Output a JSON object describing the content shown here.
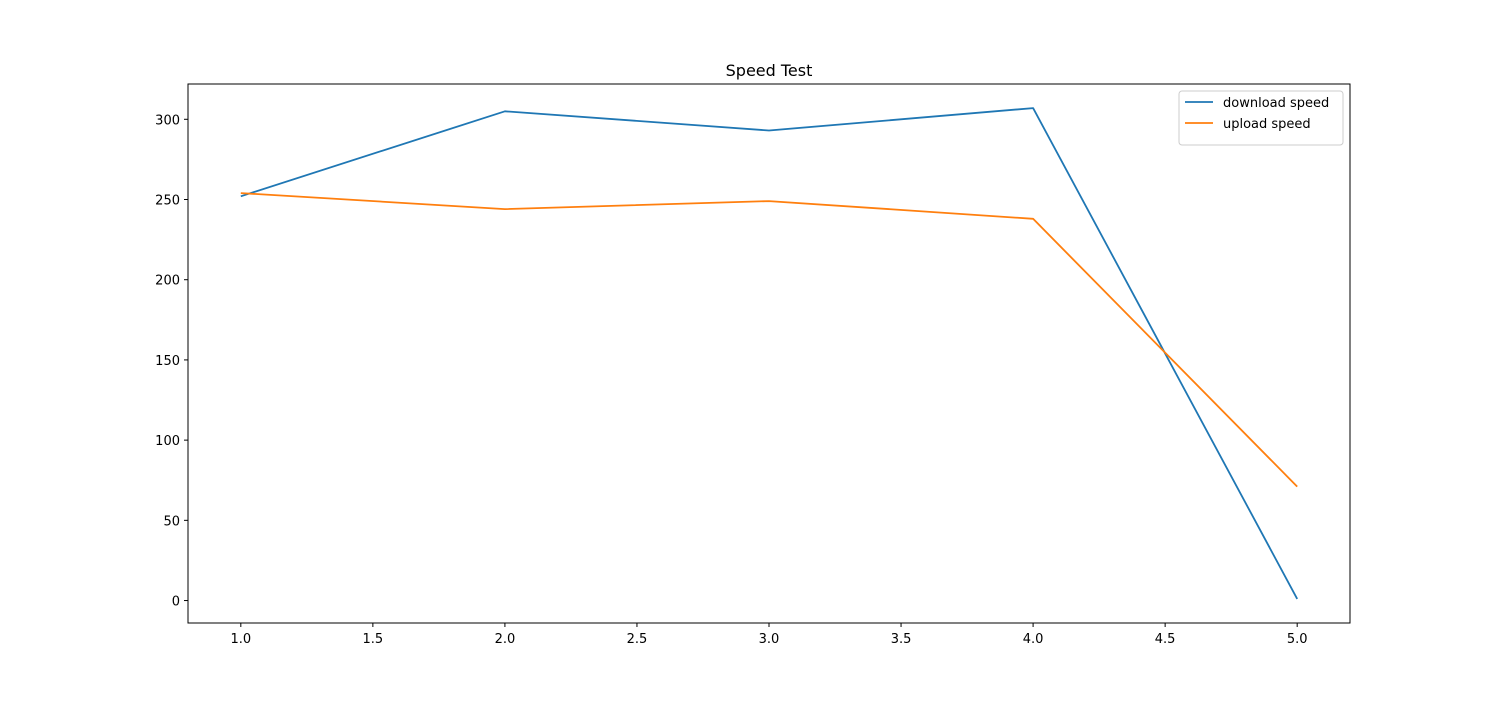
{
  "chart_data": {
    "type": "line",
    "title": "Speed Test",
    "xlabel": "",
    "ylabel": "",
    "x": [
      1,
      2,
      3,
      4,
      5
    ],
    "series": [
      {
        "name": "download speed",
        "color": "#1f77b4",
        "values": [
          252,
          305,
          293,
          307,
          1
        ]
      },
      {
        "name": "upload speed",
        "color": "#ff7f0e",
        "values": [
          254,
          244,
          249,
          238,
          71
        ]
      }
    ],
    "xlim": [
      0.8,
      5.2
    ],
    "ylim": [
      -14,
      322
    ],
    "xticks": [
      "1.0",
      "1.5",
      "2.0",
      "2.5",
      "3.0",
      "3.5",
      "4.0",
      "4.5",
      "5.0"
    ],
    "yticks": [
      "0",
      "50",
      "100",
      "150",
      "200",
      "250",
      "300"
    ],
    "grid": false,
    "legend_position": "top-right"
  }
}
